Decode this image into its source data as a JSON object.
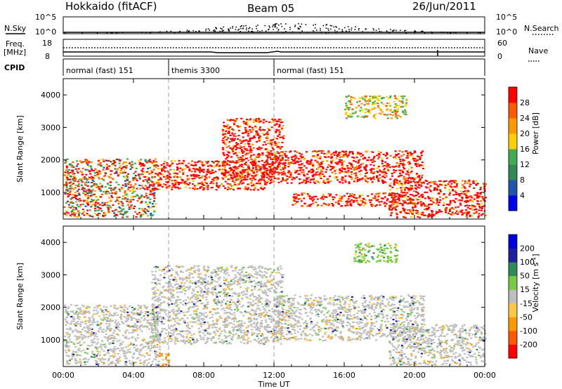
{
  "header": {
    "station": "Hokkaido (fitACF)",
    "beam": "Beam 05",
    "date": "26/Jun/2011"
  },
  "noise_panel": {
    "left_label": "N.Sky",
    "right_label": "N.Search",
    "left_ticks": [
      "10^5",
      "10^0"
    ],
    "right_ticks": [
      "10^5",
      "10^0"
    ]
  },
  "freq_panel": {
    "left_label_1": "Freq.",
    "left_label_2": "[MHz]",
    "right_label": "Nave",
    "left_ticks": [
      "18",
      "8"
    ],
    "right_ticks": [
      "60",
      "0"
    ]
  },
  "cpid": {
    "label": "CPID",
    "segments": [
      {
        "start_hour": 0,
        "end_hour": 6,
        "label": "normal (fast) 151"
      },
      {
        "start_hour": 6,
        "end_hour": 12,
        "label": "themis 3300"
      },
      {
        "start_hour": 12,
        "end_hour": 24,
        "label": "normal (fast) 151"
      }
    ]
  },
  "colors": {
    "power_scale": [
      "#0000ee",
      "#2255aa",
      "#338855",
      "#44aa55",
      "#ffd000",
      "#ff9900",
      "#ff5a00",
      "#ff0000"
    ],
    "velocity_scale": [
      "#ff0000",
      "#ff5a00",
      "#ff9900",
      "#ffc844",
      "#bebebe",
      "#7ac943",
      "#2e8b57",
      "#20209a",
      "#0000dd"
    ],
    "ground_scatter": "#bebebe"
  },
  "chart_data": [
    {
      "type": "heatmap",
      "name": "power",
      "ylabel": "Slant Range [km]",
      "yticks": [
        1000,
        2000,
        3000,
        4000
      ],
      "ylim": [
        180,
        4500
      ],
      "xlim": [
        0,
        24
      ],
      "colorbar_label": "Power [dB]",
      "colorbar_ticks": [
        4,
        8,
        12,
        16,
        20,
        24,
        28
      ],
      "colorbar_range": [
        0,
        32
      ],
      "regions": [
        {
          "t0": 0.0,
          "t1": 5.2,
          "r0": 250,
          "r1": 2050,
          "level": "mixed-low"
        },
        {
          "t0": 5.0,
          "t1": 11.5,
          "r0": 1100,
          "r1": 2000,
          "level": "high"
        },
        {
          "t0": 9.0,
          "t1": 12.5,
          "r0": 1400,
          "r1": 3300,
          "level": "high"
        },
        {
          "t0": 11.5,
          "t1": 20.5,
          "r0": 1300,
          "r1": 2300,
          "level": "high"
        },
        {
          "t0": 13.0,
          "t1": 20.0,
          "r0": 600,
          "r1": 1000,
          "level": "high"
        },
        {
          "t0": 16.0,
          "t1": 19.5,
          "r0": 3300,
          "r1": 4000,
          "level": "medium"
        },
        {
          "t0": 18.5,
          "t1": 24.0,
          "r0": 250,
          "r1": 1400,
          "level": "high"
        }
      ]
    },
    {
      "type": "heatmap",
      "name": "velocity",
      "xlabel": "Time UT",
      "ylabel": "Slant Range [km]",
      "yticks": [
        1000,
        2000,
        3000,
        4000
      ],
      "ylim": [
        180,
        4500
      ],
      "xlim": [
        0,
        24
      ],
      "xticks": [
        "00:00",
        "04:00",
        "08:00",
        "12:00",
        "16:00",
        "20:00",
        "00:00"
      ],
      "colorbar_label": "Velocity [m s^-1]",
      "colorbar_ticks": [
        200,
        100,
        50,
        15,
        -15,
        -50,
        -100,
        -200
      ],
      "regions": [
        {
          "t0": 0.0,
          "t1": 5.5,
          "r0": 250,
          "r1": 2100,
          "level": "ground-scatter"
        },
        {
          "t0": 5.0,
          "t1": 12.5,
          "r0": 900,
          "r1": 3300,
          "level": "ground-scatter"
        },
        {
          "t0": 12.0,
          "t1": 20.5,
          "r0": 1000,
          "r1": 2400,
          "level": "ground-scatter"
        },
        {
          "t0": 18.5,
          "t1": 24.0,
          "r0": 250,
          "r1": 1500,
          "level": "ground-scatter"
        },
        {
          "t0": 5.4,
          "t1": 6.0,
          "r0": 200,
          "r1": 650,
          "level": "negative"
        },
        {
          "t0": 16.5,
          "t1": 19.0,
          "r0": 3400,
          "r1": 4000,
          "level": "positive-low"
        }
      ]
    }
  ]
}
